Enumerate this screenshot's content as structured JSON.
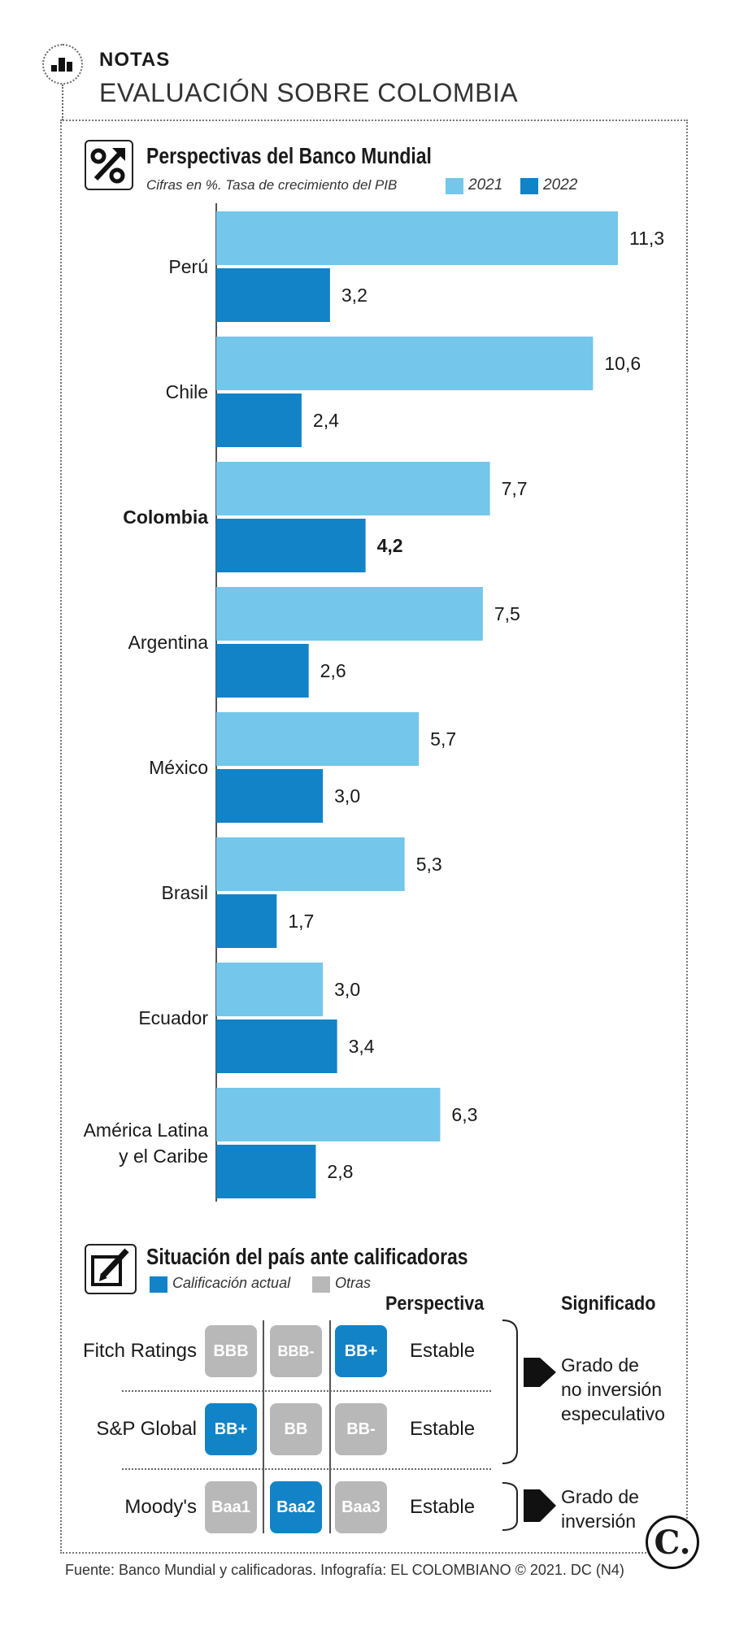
{
  "header": {
    "label": "NOTAS",
    "title": "EVALUACIÓN SOBRE COLOMBIA",
    "icon": "bar-chart-icon"
  },
  "chart_data": {
    "type": "bar",
    "orientation": "horizontal",
    "title": "Perspectivas del Banco Mundial",
    "subtitle": "Cifras en %. Tasa de crecimiento del PIB",
    "categories": [
      "Perú",
      "Chile",
      "Colombia",
      "Argentina",
      "México",
      "Brasil",
      "Ecuador",
      "América Latina\ny el Caribe"
    ],
    "highlight": "Colombia",
    "series": [
      {
        "name": "2021",
        "color": "#74c6ea",
        "values": [
          11.3,
          10.6,
          7.7,
          7.5,
          5.7,
          5.3,
          3.0,
          6.3
        ],
        "labels": [
          "11,3",
          "10,6",
          "7,7",
          "7,5",
          "5,7",
          "5,3",
          "3,0",
          "6,3"
        ]
      },
      {
        "name": "2022",
        "color": "#1283c7",
        "values": [
          3.2,
          2.4,
          4.2,
          2.6,
          3.0,
          1.7,
          3.4,
          2.8
        ],
        "labels": [
          "3,2",
          "2,4",
          "4,2",
          "2,6",
          "3,0",
          "1,7",
          "3,4",
          "2,8"
        ]
      }
    ],
    "xlim": [
      0,
      11.3
    ]
  },
  "ratings": {
    "title": "Situación del país ante calificadoras",
    "legend": {
      "current": "Calificación actual",
      "other": "Otras",
      "current_color": "#1283c7",
      "other_color": "#b8b8b8"
    },
    "col_perspective": "Perspectiva",
    "col_meaning": "Significado",
    "rows": [
      {
        "agency": "Fitch Ratings",
        "grades": [
          "BBB",
          "BBB-",
          "BB+"
        ],
        "current": 2,
        "perspective": "Estable"
      },
      {
        "agency": "S&P Global",
        "grades": [
          "BB+",
          "BB",
          "BB-"
        ],
        "current": 0,
        "perspective": "Estable"
      },
      {
        "agency": "Moody's",
        "grades": [
          "Baa1",
          "Baa2",
          "Baa3"
        ],
        "current": 1,
        "perspective": "Estable"
      }
    ],
    "meanings": [
      {
        "text": "Grado de\nno inversión\nespeculativo"
      },
      {
        "text": "Grado de\ninversión"
      }
    ]
  },
  "footer": {
    "source": "Fuente: Banco Mundial y calificadoras. Infografía: EL COLOMBIANO © 2021. DC (N4)",
    "logo": "C."
  }
}
